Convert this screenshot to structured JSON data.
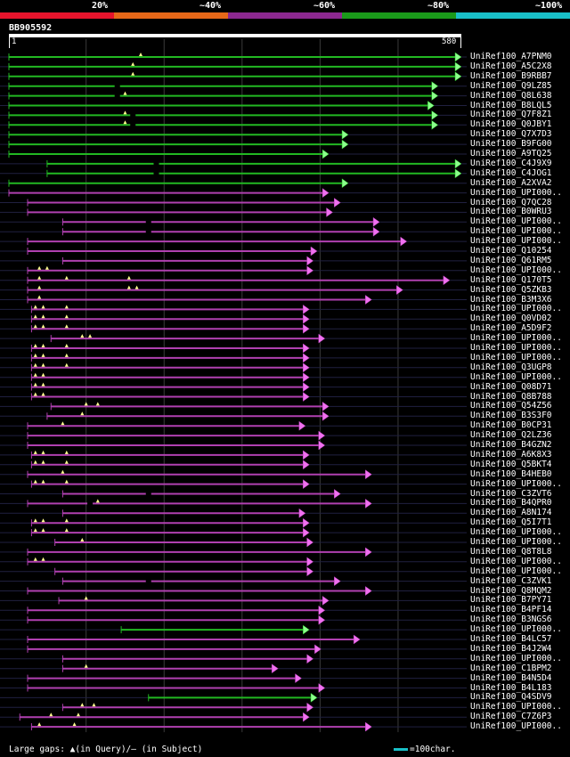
{
  "identity_legend": [
    {
      "label": "20%",
      "color": "#e8142c"
    },
    {
      "label": "~40%",
      "color": "#e86818"
    },
    {
      "label": "~60%",
      "color": "#8c2890"
    },
    {
      "label": "~80%",
      "color": "#1a9a1a"
    },
    {
      "label": "~100%",
      "color": "#19c0c8"
    }
  ],
  "query": {
    "id": "BB905592",
    "start_label": "1",
    "end_label": "580",
    "length": 580
  },
  "colors": {
    "green": "#22b822",
    "green_head": "#8cff8c",
    "purple": "#b040b0",
    "purple_head": "#f070f0",
    "grid": "#3a3a3a",
    "guide": "#202040",
    "gap": "#ffff90"
  },
  "hits": [
    {
      "name": "UniRef100_A7PNM0",
      "color": "green",
      "start": 1,
      "end": 580,
      "q_gaps": [
        170
      ],
      "s_gaps": []
    },
    {
      "name": "UniRef100_A5C2X8",
      "color": "green",
      "start": 1,
      "end": 580,
      "q_gaps": [
        160
      ],
      "s_gaps": []
    },
    {
      "name": "UniRef100_B9RBB7",
      "color": "green",
      "start": 1,
      "end": 580,
      "q_gaps": [
        160
      ],
      "s_gaps": []
    },
    {
      "name": "UniRef100_Q9LZ85",
      "color": "green",
      "start": 1,
      "end": 550,
      "q_gaps": [],
      "s_gaps": [
        140
      ]
    },
    {
      "name": "UniRef100_Q8L638",
      "color": "green",
      "start": 1,
      "end": 550,
      "q_gaps": [
        150
      ],
      "s_gaps": [
        140
      ]
    },
    {
      "name": "UniRef100_B8LQL5",
      "color": "green",
      "start": 1,
      "end": 545,
      "q_gaps": [],
      "s_gaps": []
    },
    {
      "name": "UniRef100_Q7F8Z1",
      "color": "green",
      "start": 1,
      "end": 550,
      "q_gaps": [
        150
      ],
      "s_gaps": [
        160
      ]
    },
    {
      "name": "UniRef100_Q0JBY1",
      "color": "green",
      "start": 1,
      "end": 550,
      "q_gaps": [
        150
      ],
      "s_gaps": [
        160
      ]
    },
    {
      "name": "UniRef100_Q7X7D3",
      "color": "green",
      "start": 1,
      "end": 435,
      "q_gaps": [],
      "s_gaps": []
    },
    {
      "name": "UniRef100_B9FG00",
      "color": "green",
      "start": 1,
      "end": 435,
      "q_gaps": [],
      "s_gaps": []
    },
    {
      "name": "UniRef100_A9TQ25",
      "color": "green",
      "start": 1,
      "end": 410,
      "q_gaps": [],
      "s_gaps": []
    },
    {
      "name": "UniRef100_C4J9X9",
      "color": "green",
      "start": 50,
      "end": 580,
      "q_gaps": [],
      "s_gaps": [
        190
      ]
    },
    {
      "name": "UniRef100_C4JOG1",
      "color": "green",
      "start": 50,
      "end": 580,
      "q_gaps": [],
      "s_gaps": [
        190
      ]
    },
    {
      "name": "UniRef100_A2XVA2",
      "color": "green",
      "start": 1,
      "end": 435,
      "q_gaps": [],
      "s_gaps": []
    },
    {
      "name": "UniRef100_UPI000..",
      "color": "purple",
      "start": 1,
      "end": 410,
      "q_gaps": [],
      "s_gaps": []
    },
    {
      "name": "UniRef100_Q7QC28",
      "color": "purple",
      "start": 25,
      "end": 425,
      "q_gaps": [],
      "s_gaps": []
    },
    {
      "name": "UniRef100_B0WRU3",
      "color": "purple",
      "start": 25,
      "end": 415,
      "q_gaps": [],
      "s_gaps": []
    },
    {
      "name": "UniRef100_UPI000..",
      "color": "purple",
      "start": 70,
      "end": 475,
      "q_gaps": [],
      "s_gaps": [
        180
      ]
    },
    {
      "name": "UniRef100_UPI000..",
      "color": "purple",
      "start": 70,
      "end": 475,
      "q_gaps": [],
      "s_gaps": [
        180
      ]
    },
    {
      "name": "UniRef100_UPI000..",
      "color": "purple",
      "start": 25,
      "end": 510,
      "q_gaps": [],
      "s_gaps": []
    },
    {
      "name": "UniRef100_Q10254",
      "color": "purple",
      "start": 25,
      "end": 395,
      "q_gaps": [],
      "s_gaps": []
    },
    {
      "name": "UniRef100_Q61RM5",
      "color": "purple",
      "start": 70,
      "end": 390,
      "q_gaps": [],
      "s_gaps": []
    },
    {
      "name": "UniRef100_UPI000..",
      "color": "purple",
      "start": 25,
      "end": 390,
      "q_gaps": [
        40,
        50
      ],
      "s_gaps": []
    },
    {
      "name": "UniRef100_Q170T5",
      "color": "purple",
      "start": 25,
      "end": 565,
      "q_gaps": [
        40,
        75,
        155
      ],
      "s_gaps": []
    },
    {
      "name": "UniRef100_Q5ZKB3",
      "color": "purple",
      "start": 25,
      "end": 505,
      "q_gaps": [
        40,
        155,
        165
      ],
      "s_gaps": []
    },
    {
      "name": "UniRef100_B3M3X6",
      "color": "purple",
      "start": 25,
      "end": 465,
      "q_gaps": [
        40
      ],
      "s_gaps": []
    },
    {
      "name": "UniRef100_UPI000..",
      "color": "purple",
      "start": 30,
      "end": 385,
      "q_gaps": [
        35,
        45,
        75
      ],
      "s_gaps": []
    },
    {
      "name": "UniRef100_Q0VD02",
      "color": "purple",
      "start": 30,
      "end": 385,
      "q_gaps": [
        35,
        45,
        75
      ],
      "s_gaps": []
    },
    {
      "name": "UniRef100_A5D9F2",
      "color": "purple",
      "start": 30,
      "end": 385,
      "q_gaps": [
        35,
        45,
        75
      ],
      "s_gaps": []
    },
    {
      "name": "UniRef100_UPI000..",
      "color": "purple",
      "start": 55,
      "end": 405,
      "q_gaps": [
        95,
        105
      ],
      "s_gaps": []
    },
    {
      "name": "UniRef100_UPI000..",
      "color": "purple",
      "start": 30,
      "end": 385,
      "q_gaps": [
        35,
        45,
        75
      ],
      "s_gaps": []
    },
    {
      "name": "UniRef100_UPI000..",
      "color": "purple",
      "start": 30,
      "end": 385,
      "q_gaps": [
        35,
        45,
        75
      ],
      "s_gaps": []
    },
    {
      "name": "UniRef100_Q3UGP8",
      "color": "purple",
      "start": 30,
      "end": 385,
      "q_gaps": [
        35,
        45,
        75
      ],
      "s_gaps": []
    },
    {
      "name": "UniRef100_UPI000..",
      "color": "purple",
      "start": 30,
      "end": 385,
      "q_gaps": [
        35,
        45
      ],
      "s_gaps": []
    },
    {
      "name": "UniRef100_Q08D71",
      "color": "purple",
      "start": 30,
      "end": 385,
      "q_gaps": [
        35,
        45
      ],
      "s_gaps": []
    },
    {
      "name": "UniRef100_Q8B788",
      "color": "purple",
      "start": 30,
      "end": 385,
      "q_gaps": [
        35,
        45
      ],
      "s_gaps": []
    },
    {
      "name": "UniRef100_Q54Z56",
      "color": "purple",
      "start": 55,
      "end": 410,
      "q_gaps": [
        100,
        115
      ],
      "s_gaps": []
    },
    {
      "name": "UniRef100_B3S3F0",
      "color": "purple",
      "start": 50,
      "end": 410,
      "q_gaps": [
        95
      ],
      "s_gaps": []
    },
    {
      "name": "UniRef100_B0CP31",
      "color": "purple",
      "start": 25,
      "end": 380,
      "q_gaps": [
        70
      ],
      "s_gaps": []
    },
    {
      "name": "UniRef100_Q2LZ36",
      "color": "purple",
      "start": 25,
      "end": 405,
      "q_gaps": [],
      "s_gaps": []
    },
    {
      "name": "UniRef100_B4GZN2",
      "color": "purple",
      "start": 25,
      "end": 405,
      "q_gaps": [],
      "s_gaps": []
    },
    {
      "name": "UniRef100_A6K8X3",
      "color": "purple",
      "start": 30,
      "end": 385,
      "q_gaps": [
        35,
        45,
        75
      ],
      "s_gaps": []
    },
    {
      "name": "UniRef100_Q5BKT4",
      "color": "purple",
      "start": 30,
      "end": 385,
      "q_gaps": [
        35,
        45,
        75
      ],
      "s_gaps": []
    },
    {
      "name": "UniRef100_B4HEB0",
      "color": "purple",
      "start": 25,
      "end": 465,
      "q_gaps": [
        70
      ],
      "s_gaps": []
    },
    {
      "name": "UniRef100_UPI000..",
      "color": "purple",
      "start": 30,
      "end": 385,
      "q_gaps": [
        35,
        45,
        75
      ],
      "s_gaps": []
    },
    {
      "name": "UniRef100_C3ZVT6",
      "color": "purple",
      "start": 70,
      "end": 425,
      "q_gaps": [],
      "s_gaps": [
        180
      ]
    },
    {
      "name": "UniRef100_B4QPR0",
      "color": "purple",
      "start": 25,
      "end": 465,
      "q_gaps": [
        115
      ],
      "s_gaps": [
        105
      ]
    },
    {
      "name": "UniRef100_A8N174",
      "color": "purple",
      "start": 70,
      "end": 380,
      "q_gaps": [],
      "s_gaps": []
    },
    {
      "name": "UniRef100_Q5I7T1",
      "color": "purple",
      "start": 30,
      "end": 385,
      "q_gaps": [
        35,
        45,
        75
      ],
      "s_gaps": []
    },
    {
      "name": "UniRef100_UPI000..",
      "color": "purple",
      "start": 30,
      "end": 385,
      "q_gaps": [
        35,
        45,
        75
      ],
      "s_gaps": []
    },
    {
      "name": "UniRef100_UPI000..",
      "color": "purple",
      "start": 60,
      "end": 390,
      "q_gaps": [
        95
      ],
      "s_gaps": []
    },
    {
      "name": "UniRef100_Q8T8L8",
      "color": "purple",
      "start": 25,
      "end": 465,
      "q_gaps": [],
      "s_gaps": []
    },
    {
      "name": "UniRef100_UPI000..",
      "color": "purple",
      "start": 25,
      "end": 390,
      "q_gaps": [
        35,
        45
      ],
      "s_gaps": []
    },
    {
      "name": "UniRef100_UPI000..",
      "color": "purple",
      "start": 60,
      "end": 390,
      "q_gaps": [],
      "s_gaps": []
    },
    {
      "name": "UniRef100_C3ZVK1",
      "color": "purple",
      "start": 70,
      "end": 425,
      "q_gaps": [],
      "s_gaps": [
        180
      ]
    },
    {
      "name": "UniRef100_Q8MQM2",
      "color": "purple",
      "start": 25,
      "end": 465,
      "q_gaps": [],
      "s_gaps": []
    },
    {
      "name": "UniRef100_B7PY71",
      "color": "purple",
      "start": 65,
      "end": 410,
      "q_gaps": [
        100
      ],
      "s_gaps": []
    },
    {
      "name": "UniRef100_B4PF14",
      "color": "purple",
      "start": 25,
      "end": 405,
      "q_gaps": [],
      "s_gaps": []
    },
    {
      "name": "UniRef100_B3NGS6",
      "color": "purple",
      "start": 25,
      "end": 405,
      "q_gaps": [],
      "s_gaps": []
    },
    {
      "name": "UniRef100_UPI000..",
      "color": "green",
      "start": 145,
      "end": 385,
      "q_gaps": [],
      "s_gaps": []
    },
    {
      "name": "UniRef100_B4LC57",
      "color": "purple",
      "start": 25,
      "end": 450,
      "q_gaps": [],
      "s_gaps": []
    },
    {
      "name": "UniRef100_B4J2W4",
      "color": "purple",
      "start": 25,
      "end": 400,
      "q_gaps": [],
      "s_gaps": []
    },
    {
      "name": "UniRef100_UPI000..",
      "color": "purple",
      "start": 70,
      "end": 390,
      "q_gaps": [],
      "s_gaps": []
    },
    {
      "name": "UniRef100_C1BPM2",
      "color": "purple",
      "start": 70,
      "end": 345,
      "q_gaps": [
        100
      ],
      "s_gaps": []
    },
    {
      "name": "UniRef100_B4N5D4",
      "color": "purple",
      "start": 25,
      "end": 375,
      "q_gaps": [],
      "s_gaps": []
    },
    {
      "name": "UniRef100_B4L183",
      "color": "purple",
      "start": 25,
      "end": 405,
      "q_gaps": [],
      "s_gaps": []
    },
    {
      "name": "UniRef100_Q4SDV9",
      "color": "green",
      "start": 180,
      "end": 395,
      "q_gaps": [],
      "s_gaps": []
    },
    {
      "name": "UniRef100_UPI000..",
      "color": "purple",
      "start": 70,
      "end": 390,
      "q_gaps": [
        95,
        110
      ],
      "s_gaps": []
    },
    {
      "name": "UniRef100_C7Z6P3",
      "color": "purple",
      "start": 15,
      "end": 385,
      "q_gaps": [
        55,
        90
      ],
      "s_gaps": []
    },
    {
      "name": "UniRef100_UPI000..",
      "color": "purple",
      "start": 30,
      "end": 465,
      "q_gaps": [
        40,
        85
      ],
      "s_gaps": []
    }
  ],
  "footer": {
    "text": "Large gaps: ▲(in Query)/– (in Subject)",
    "scale": "=100char."
  }
}
